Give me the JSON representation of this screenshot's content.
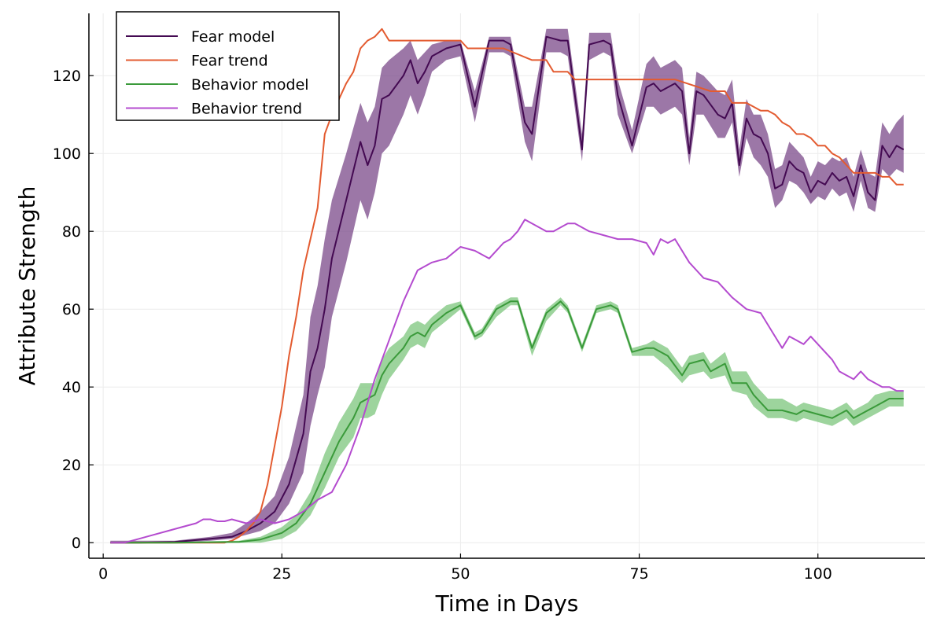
{
  "chart_data": {
    "type": "line",
    "xlabel": "Time in Days",
    "ylabel": "Attribute Strength",
    "xlim": [
      -2,
      115
    ],
    "ylim": [
      -4,
      136
    ],
    "xticks": [
      0,
      25,
      50,
      75,
      100
    ],
    "yticks": [
      0,
      20,
      40,
      60,
      80,
      100,
      120
    ],
    "grid": true,
    "legend_position": "top-left",
    "series": [
      {
        "name": "Fear model",
        "color": "#440a52",
        "band_color": "#7b4a8a",
        "band_opacity": 0.75,
        "x": [
          1,
          5,
          10,
          15,
          18,
          20,
          22,
          24,
          26,
          28,
          29,
          30,
          31,
          32,
          34,
          36,
          37,
          38,
          39,
          40,
          42,
          43,
          44,
          45,
          46,
          48,
          50,
          52,
          54,
          56,
          57,
          59,
          60,
          62,
          64,
          65,
          67,
          68,
          70,
          71,
          72,
          74,
          76,
          77,
          78,
          80,
          81,
          82,
          83,
          84,
          86,
          87,
          88,
          89,
          90,
          91,
          92,
          93,
          94,
          95,
          96,
          97,
          98,
          99,
          100,
          101,
          102,
          103,
          104,
          105,
          106,
          107,
          108,
          109,
          110,
          111,
          112
        ],
        "y": [
          0,
          0,
          0.2,
          1,
          1.5,
          3,
          5,
          8,
          15,
          28,
          44,
          50,
          60,
          73,
          88,
          103,
          97,
          102,
          114,
          115,
          120,
          124,
          118,
          121,
          125,
          127,
          128,
          112,
          129,
          129,
          128,
          108,
          105,
          130,
          129,
          129,
          101,
          128,
          129,
          128,
          115,
          102,
          117,
          118,
          116,
          118,
          116,
          100,
          116,
          115,
          110,
          109,
          113,
          97,
          109,
          105,
          104,
          100,
          91,
          92,
          98,
          96,
          95,
          90,
          93,
          92,
          95,
          93,
          94,
          89,
          97,
          90,
          88,
          102,
          99,
          102,
          101
        ],
        "lower": [
          0,
          0,
          0,
          0.5,
          1,
          2,
          3,
          5,
          10,
          18,
          30,
          38,
          45,
          58,
          72,
          88,
          83,
          90,
          100,
          102,
          110,
          115,
          110,
          115,
          121,
          124,
          125,
          108,
          126,
          126,
          125,
          103,
          98,
          126,
          126,
          125,
          98,
          124,
          126,
          125,
          110,
          100,
          112,
          112,
          110,
          112,
          110,
          97,
          110,
          110,
          104,
          104,
          108,
          94,
          104,
          99,
          97,
          94,
          86,
          88,
          93,
          92,
          90,
          87,
          89,
          88,
          91,
          89,
          90,
          85,
          93,
          86,
          85,
          96,
          94,
          96,
          95
        ],
        "upper": [
          0.5,
          0.5,
          0.5,
          1.5,
          2.5,
          5,
          8,
          12,
          22,
          38,
          58,
          66,
          78,
          88,
          100,
          113,
          108,
          112,
          122,
          124,
          127,
          129,
          124,
          126,
          128,
          129,
          129,
          116,
          130,
          130,
          130,
          112,
          112,
          132,
          132,
          132,
          105,
          131,
          131,
          131,
          119,
          106,
          123,
          125,
          122,
          124,
          122,
          104,
          121,
          120,
          116,
          115,
          119,
          101,
          114,
          110,
          110,
          105,
          96,
          97,
          103,
          101,
          99,
          94,
          98,
          97,
          99,
          98,
          99,
          94,
          101,
          95,
          94,
          108,
          105,
          108,
          110
        ]
      },
      {
        "name": "Fear trend",
        "color": "#e35b30",
        "x": [
          1,
          5,
          10,
          15,
          17,
          18,
          19,
          20,
          21,
          22,
          23,
          24,
          25,
          26,
          27,
          28,
          29,
          30,
          31,
          32,
          33,
          34,
          35,
          36,
          37,
          38,
          39,
          40,
          45,
          50,
          51,
          55,
          56,
          60,
          61,
          62,
          63,
          64,
          65,
          66,
          67,
          68,
          70,
          75,
          80,
          85,
          86,
          87,
          88,
          89,
          90,
          91,
          92,
          93,
          94,
          95,
          96,
          97,
          98,
          99,
          100,
          101,
          102,
          103,
          104,
          105,
          106,
          107,
          108,
          109,
          110,
          111,
          112
        ],
        "y": [
          0,
          0,
          0,
          0,
          0,
          0.5,
          1.5,
          3,
          5,
          8,
          15,
          25,
          35,
          48,
          58,
          70,
          78,
          86,
          105,
          110,
          114,
          118,
          121,
          127,
          129,
          130,
          132,
          129,
          129,
          129,
          127,
          127,
          127,
          124,
          124,
          124,
          121,
          121,
          121,
          119,
          119,
          119,
          119,
          119,
          119,
          116,
          116,
          116,
          113,
          113,
          113,
          112,
          111,
          111,
          110,
          108,
          107,
          105,
          105,
          104,
          102,
          102,
          100,
          99,
          97,
          95,
          95,
          95,
          95,
          94,
          94,
          92,
          92
        ]
      },
      {
        "name": "Behavior model",
        "color": "#3a9a3a",
        "band_color": "#7cc67c",
        "band_opacity": 0.75,
        "x": [
          1,
          10,
          19,
          22,
          25,
          27,
          29,
          31,
          33,
          35,
          36,
          37,
          38,
          39,
          40,
          42,
          43,
          44,
          45,
          46,
          48,
          50,
          51,
          52,
          53,
          55,
          57,
          58,
          60,
          62,
          64,
          65,
          67,
          69,
          71,
          72,
          74,
          76,
          77,
          79,
          81,
          82,
          84,
          85,
          87,
          88,
          90,
          91,
          93,
          95,
          97,
          98,
          100,
          102,
          104,
          105,
          107,
          108,
          110,
          112
        ],
        "y": [
          0,
          0,
          0.2,
          0.8,
          2.5,
          5,
          10,
          18,
          26,
          32,
          36,
          37,
          38,
          43,
          46,
          50,
          53,
          54,
          53,
          56,
          59,
          61,
          57,
          53,
          54,
          60,
          62,
          62,
          50,
          59,
          62,
          60,
          50,
          60,
          61,
          60,
          49,
          50,
          50,
          48,
          43,
          46,
          47,
          44,
          46,
          41,
          41,
          38,
          34,
          34,
          33,
          34,
          33,
          32,
          34,
          32,
          34,
          35,
          37,
          37
        ],
        "lower": [
          0,
          0,
          0,
          0,
          1,
          3,
          7,
          14,
          22,
          27,
          32,
          32,
          33,
          38,
          42,
          47,
          50,
          51,
          50,
          54,
          57,
          60,
          56,
          52,
          53,
          58,
          61,
          61,
          48,
          57,
          61,
          59,
          49,
          59,
          60,
          59,
          48,
          48,
          48,
          45,
          41,
          43,
          44,
          42,
          43,
          39,
          38,
          35,
          32,
          32,
          31,
          32,
          31,
          30,
          32,
          30,
          32,
          33,
          35,
          35
        ],
        "upper": [
          0.2,
          0.2,
          0.5,
          1.5,
          4,
          7,
          13,
          23,
          31,
          37,
          41,
          41,
          41,
          47,
          50,
          53,
          56,
          57,
          56,
          58,
          61,
          62,
          58,
          54,
          55,
          61,
          63,
          63,
          51,
          60,
          63,
          61,
          51,
          61,
          62,
          61,
          50,
          51,
          52,
          50,
          45,
          48,
          49,
          46,
          49,
          44,
          44,
          41,
          37,
          37,
          35,
          36,
          35,
          34,
          36,
          34,
          36,
          38,
          39,
          39
        ]
      },
      {
        "name": "Behavior trend",
        "color": "#b44bcf",
        "x": [
          1,
          3,
          5,
          7,
          9,
          11,
          13,
          14,
          15,
          16,
          17,
          18,
          19,
          20,
          21,
          22,
          23,
          24,
          25,
          26,
          27,
          28,
          30,
          32,
          34,
          36,
          38,
          40,
          42,
          44,
          46,
          48,
          50,
          52,
          54,
          56,
          57,
          58,
          59,
          60,
          61,
          62,
          63,
          64,
          65,
          66,
          67,
          68,
          70,
          72,
          74,
          76,
          77,
          78,
          79,
          80,
          82,
          84,
          86,
          88,
          90,
          92,
          94,
          95,
          96,
          97,
          98,
          99,
          100,
          101,
          102,
          103,
          104,
          105,
          106,
          107,
          108,
          109,
          110,
          111,
          112
        ],
        "y": [
          0,
          0,
          1,
          2,
          3,
          4,
          5,
          6,
          6,
          5.5,
          5.5,
          6,
          5.5,
          5,
          5.5,
          6,
          5.5,
          5,
          5.5,
          6,
          7,
          8,
          11,
          13,
          20,
          30,
          42,
          52,
          62,
          70,
          72,
          73,
          76,
          75,
          73,
          77,
          78,
          80,
          83,
          82,
          81,
          80,
          80,
          81,
          82,
          82,
          81,
          80,
          79,
          78,
          78,
          77,
          74,
          78,
          77,
          78,
          72,
          68,
          67,
          63,
          60,
          59,
          53,
          50,
          53,
          52,
          51,
          53,
          51,
          49,
          47,
          44,
          43,
          42,
          44,
          42,
          41,
          40,
          40,
          39,
          39
        ]
      }
    ]
  }
}
